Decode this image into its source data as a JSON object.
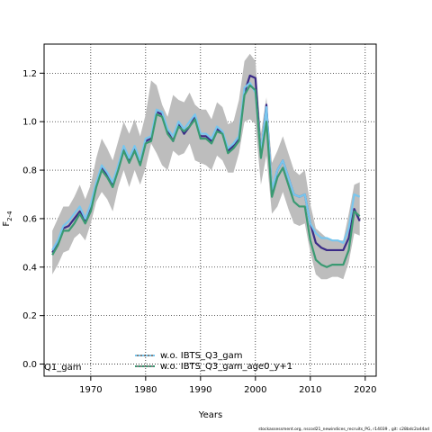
{
  "chart_data": {
    "type": "line",
    "xlabel": "Years",
    "ylabel": "F",
    "ylabel_sub": "2-4",
    "xlim": [
      1961.5,
      2022
    ],
    "ylim": [
      -0.05,
      1.32
    ],
    "xticks": [
      1970,
      1980,
      1990,
      2000,
      2010,
      2020
    ],
    "yticks": [
      0.0,
      0.2,
      0.4,
      0.6,
      0.8,
      1.0,
      1.2
    ],
    "ytick_labels": [
      "0.0",
      "0.2",
      "0.4",
      "0.6",
      "0.8",
      "1.0",
      "1.2"
    ],
    "grid": true,
    "legend_position": "bottom-center",
    "corner_label": "Q1_gam",
    "footer": "stockassessment.org, nscod21_newindices_recruits_PG, r14039 , git: c28bdc2a44ad",
    "x": [
      1963,
      1964,
      1965,
      1966,
      1967,
      1968,
      1969,
      1970,
      1971,
      1972,
      1973,
      1974,
      1975,
      1976,
      1977,
      1978,
      1979,
      1980,
      1981,
      1982,
      1983,
      1984,
      1985,
      1986,
      1987,
      1988,
      1989,
      1990,
      1991,
      1992,
      1993,
      1994,
      1995,
      1996,
      1997,
      1998,
      1999,
      2000,
      2001,
      2002,
      2003,
      2004,
      2005,
      2006,
      2007,
      2008,
      2009,
      2010,
      2011,
      2012,
      2013,
      2014,
      2015,
      2016,
      2017,
      2018,
      2019
    ],
    "band": {
      "color": "#bdbdbd",
      "upper": [
        0.55,
        0.6,
        0.65,
        0.65,
        0.69,
        0.74,
        0.68,
        0.74,
        0.85,
        0.93,
        0.89,
        0.84,
        0.92,
        1.0,
        0.95,
        1.01,
        0.94,
        1.03,
        1.17,
        1.15,
        1.07,
        1.02,
        1.11,
        1.09,
        1.08,
        1.12,
        1.07,
        1.05,
        1.05,
        1.01,
        1.08,
        1.06,
        0.99,
        1.0,
        1.09,
        1.25,
        1.28,
        1.25,
        0.95,
        1.1,
        0.83,
        0.88,
        0.94,
        0.87,
        0.8,
        0.78,
        0.8,
        0.66,
        0.56,
        0.54,
        0.52,
        0.51,
        0.51,
        0.51,
        0.62,
        0.74,
        0.75
      ],
      "lower": [
        0.37,
        0.41,
        0.46,
        0.47,
        0.52,
        0.54,
        0.51,
        0.58,
        0.67,
        0.71,
        0.68,
        0.63,
        0.73,
        0.8,
        0.73,
        0.8,
        0.74,
        0.81,
        0.91,
        0.87,
        0.82,
        0.8,
        0.88,
        0.86,
        0.87,
        0.91,
        0.84,
        0.83,
        0.82,
        0.8,
        0.86,
        0.84,
        0.79,
        0.79,
        0.87,
        1.0,
        1.01,
        0.99,
        0.74,
        0.86,
        0.62,
        0.65,
        0.71,
        0.64,
        0.58,
        0.57,
        0.58,
        0.46,
        0.37,
        0.35,
        0.35,
        0.36,
        0.36,
        0.35,
        0.42,
        0.54,
        0.53
      ]
    },
    "series": [
      {
        "name": "",
        "color": "#3b2b87",
        "values": [
          0.46,
          0.5,
          0.56,
          0.57,
          0.6,
          0.63,
          0.59,
          0.64,
          0.74,
          0.81,
          0.78,
          0.74,
          0.81,
          0.89,
          0.84,
          0.89,
          0.83,
          0.92,
          0.93,
          1.04,
          1.03,
          0.96,
          0.92,
          0.99,
          0.95,
          0.98,
          1.02,
          0.94,
          0.94,
          0.92,
          0.97,
          0.95,
          0.88,
          0.9,
          0.93,
          1.12,
          1.19,
          1.18,
          0.86,
          1.07,
          0.71,
          0.8,
          0.84,
          0.77,
          0.7,
          0.69,
          0.7,
          0.58,
          0.5,
          0.48,
          0.47,
          0.47,
          0.47,
          0.47,
          0.52,
          0.64,
          0.59
        ]
      },
      {
        "name": "w.o. IBTS_Q3_gam",
        "color": "#78c6ee",
        "values": [
          0.47,
          0.51,
          0.57,
          0.59,
          0.62,
          0.65,
          0.6,
          0.66,
          0.75,
          0.82,
          0.79,
          0.75,
          0.82,
          0.9,
          0.85,
          0.9,
          0.84,
          0.93,
          0.94,
          1.05,
          1.04,
          0.97,
          0.94,
          1.0,
          0.97,
          1.0,
          1.03,
          0.95,
          0.95,
          0.93,
          0.98,
          0.96,
          0.89,
          0.91,
          0.94,
          1.14,
          1.16,
          1.12,
          0.87,
          1.06,
          0.72,
          0.8,
          0.84,
          0.77,
          0.7,
          0.69,
          0.7,
          0.58,
          0.54,
          0.52,
          0.52,
          0.51,
          0.51,
          0.5,
          0.56,
          0.7,
          0.69
        ]
      },
      {
        "name": "w.o. IBTS_Q3_gam_age0_y+1",
        "color": "#3a9a72",
        "values": [
          0.45,
          0.49,
          0.55,
          0.55,
          0.58,
          0.62,
          0.58,
          0.63,
          0.73,
          0.8,
          0.77,
          0.73,
          0.8,
          0.88,
          0.83,
          0.88,
          0.82,
          0.91,
          0.92,
          1.03,
          1.02,
          0.95,
          0.92,
          0.98,
          0.96,
          0.98,
          1.01,
          0.93,
          0.93,
          0.91,
          0.96,
          0.95,
          0.87,
          0.89,
          0.92,
          1.11,
          1.15,
          1.13,
          0.85,
          1.0,
          0.69,
          0.77,
          0.81,
          0.74,
          0.67,
          0.65,
          0.65,
          0.51,
          0.43,
          0.41,
          0.4,
          0.41,
          0.41,
          0.41,
          0.47,
          0.63,
          0.61
        ]
      }
    ]
  }
}
